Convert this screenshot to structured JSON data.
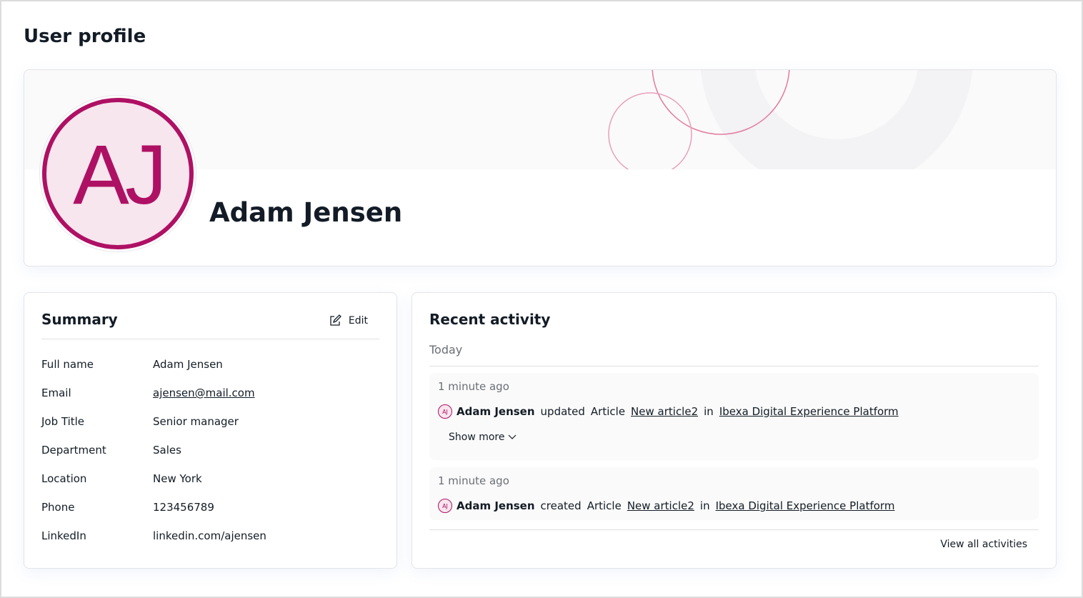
{
  "page": {
    "title": "User profile"
  },
  "profile": {
    "initials": "AJ",
    "name": "Adam Jensen",
    "accent": "#ae1164"
  },
  "summary": {
    "title": "Summary",
    "edit_label": "Edit",
    "edit_icon": "edit-icon",
    "fields": [
      {
        "label": "Full name",
        "value": "Adam Jensen"
      },
      {
        "label": "Email",
        "value": "ajensen@mail.com",
        "link": true
      },
      {
        "label": "Job Title",
        "value": "Senior manager"
      },
      {
        "label": "Department",
        "value": "Sales"
      },
      {
        "label": "Location",
        "value": "New York"
      },
      {
        "label": "Phone",
        "value": "123456789"
      },
      {
        "label": "LinkedIn",
        "value": "linkedin.com/ajensen"
      }
    ]
  },
  "activity": {
    "title": "Recent activity",
    "group": "Today",
    "items": [
      {
        "time": "1 minute ago",
        "initials": "AJ",
        "user": "Adam Jensen",
        "action": "updated",
        "type": "Article",
        "target": "New article2",
        "in": "in",
        "location": "Ibexa Digital Experience Platform",
        "show_more": "Show more"
      },
      {
        "time": "1 minute ago",
        "initials": "AJ",
        "user": "Adam Jensen",
        "action": "created",
        "type": "Article",
        "target": "New article2",
        "in": "in",
        "location": "Ibexa Digital Experience Platform"
      }
    ],
    "view_all": "View all activities"
  }
}
